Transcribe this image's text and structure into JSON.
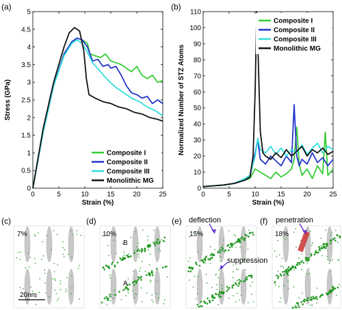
{
  "panels": {
    "a": "(a)",
    "b": "(b)",
    "c": "(c)",
    "d": "(d)",
    "e": "(e)",
    "f": "(f)"
  },
  "chart_data": [
    {
      "id": "a",
      "type": "line",
      "xlabel": "Strain (%)",
      "ylabel": "Stress (GPa)",
      "xlim": [
        0,
        25
      ],
      "ylim": [
        0,
        5
      ],
      "xticks": [
        0,
        5,
        10,
        15,
        20,
        25
      ],
      "yticks": [
        0,
        0.5,
        1,
        1.5,
        2,
        2.5,
        3,
        3.5,
        4,
        4.5,
        5
      ],
      "yticklabels": [
        "0",
        "0.5",
        "1",
        "1.5",
        "2",
        "2.5",
        "3",
        "3.5",
        "4",
        "4.5",
        "5"
      ],
      "grid": false,
      "legend_position": "bottom-right",
      "series": [
        {
          "name": "Composite I",
          "color": "#33cc33",
          "x": [
            0,
            2,
            4,
            6,
            7.5,
            8.5,
            9.5,
            10.5,
            11,
            12,
            13,
            14,
            15,
            16,
            17,
            18,
            19,
            20,
            21,
            22,
            23,
            24,
            25
          ],
          "y": [
            0.0,
            1.6,
            2.9,
            3.8,
            4.15,
            4.25,
            4.2,
            4.1,
            3.8,
            3.75,
            3.7,
            3.8,
            3.6,
            3.55,
            3.5,
            3.4,
            3.3,
            3.45,
            3.2,
            3.1,
            3.2,
            3.0,
            3.05
          ]
        },
        {
          "name": "Composite II",
          "color": "#2233cc",
          "x": [
            0,
            2,
            4,
            6,
            7.5,
            8.5,
            9.5,
            10.5,
            11.5,
            12.5,
            13.5,
            14.5,
            15,
            16,
            17,
            18,
            19,
            20,
            21,
            22,
            23,
            24,
            25
          ],
          "y": [
            0.0,
            1.6,
            2.9,
            3.8,
            4.15,
            4.25,
            4.2,
            4.0,
            3.6,
            3.65,
            3.45,
            3.5,
            3.4,
            3.45,
            3.2,
            2.9,
            2.7,
            2.65,
            2.55,
            2.6,
            2.4,
            2.5,
            2.4
          ]
        },
        {
          "name": "Composite III",
          "color": "#33dddd",
          "x": [
            0,
            2,
            4,
            6,
            7.5,
            8.5,
            9.5,
            10.5,
            11.5,
            13,
            14.5,
            16,
            17.5,
            19,
            20.5,
            22,
            23.5,
            25
          ],
          "y": [
            0.0,
            1.6,
            2.9,
            3.75,
            4.1,
            4.2,
            4.1,
            3.85,
            3.55,
            3.3,
            3.05,
            2.85,
            2.7,
            2.55,
            2.45,
            2.3,
            2.2,
            2.05
          ]
        },
        {
          "name": "Monolithic MG",
          "color": "#111111",
          "x": [
            0,
            2,
            4,
            6,
            7,
            8,
            9,
            9.8,
            10.3,
            10.8,
            12,
            13.5,
            15,
            16.5,
            18,
            19.5,
            21,
            22.5,
            24,
            25
          ],
          "y": [
            0.0,
            1.7,
            3.0,
            4.0,
            4.4,
            4.55,
            4.45,
            3.9,
            3.1,
            2.65,
            2.55,
            2.45,
            2.4,
            2.3,
            2.25,
            2.15,
            2.1,
            2.0,
            1.95,
            1.9
          ]
        }
      ]
    },
    {
      "id": "b",
      "type": "line",
      "xlabel": "Strain (%)",
      "ylabel": "Normalized Number of STZ Atoms",
      "xlim": [
        0,
        25
      ],
      "ylim": [
        0,
        110
      ],
      "xticks": [
        0,
        5,
        10,
        15,
        20,
        25
      ],
      "yticks": [
        0,
        10,
        20,
        30,
        40,
        50,
        60,
        70,
        80,
        90,
        100,
        110
      ],
      "grid": false,
      "legend_position": "top-right",
      "series": [
        {
          "name": "Composite I",
          "color": "#33cc33",
          "x": [
            0,
            2,
            4,
            6,
            8,
            9,
            10,
            11,
            12,
            13,
            14,
            15,
            16,
            17,
            17.5,
            18,
            18.5,
            19,
            20,
            21,
            22,
            23,
            23.5,
            24,
            25
          ],
          "y": [
            1,
            1.5,
            2,
            3,
            5,
            6,
            12,
            10,
            8,
            6,
            10,
            7,
            9,
            12,
            18,
            38,
            15,
            8,
            12,
            6,
            14,
            9,
            35,
            8,
            12
          ]
        },
        {
          "name": "Composite II",
          "color": "#2233cc",
          "x": [
            0,
            2,
            4,
            6,
            8,
            9,
            10,
            10.5,
            11,
            12,
            13,
            14,
            15,
            16,
            17,
            17.5,
            18,
            18.5,
            19,
            20,
            21,
            22,
            23,
            24,
            25
          ],
          "y": [
            1,
            1.5,
            2,
            3,
            5,
            7,
            22,
            30,
            18,
            15,
            20,
            17,
            14,
            20,
            16,
            52,
            20,
            14,
            18,
            15,
            22,
            16,
            19,
            14,
            18
          ]
        },
        {
          "name": "Composite III",
          "color": "#33dddd",
          "x": [
            0,
            2,
            4,
            6,
            8,
            9,
            10,
            10.5,
            11,
            12,
            13,
            14,
            15,
            16,
            17,
            18,
            19,
            20,
            21,
            22,
            23,
            24,
            25
          ],
          "y": [
            1,
            1.5,
            2,
            3,
            6,
            8,
            20,
            31,
            24,
            22,
            26,
            21,
            25,
            20,
            24,
            22,
            27,
            21,
            25,
            28,
            22,
            26,
            24
          ]
        },
        {
          "name": "Monolithic MG",
          "color": "#111111",
          "x": [
            0,
            2,
            4,
            6,
            8,
            9,
            9.6,
            10,
            10.3,
            10.6,
            11,
            11.5,
            12,
            13,
            14,
            15,
            16,
            17,
            18,
            19,
            20,
            21,
            22,
            23,
            24,
            25
          ],
          "y": [
            1,
            1.5,
            2,
            3,
            5,
            7,
            20,
            60,
            110,
            80,
            35,
            22,
            20,
            18,
            22,
            19,
            24,
            20,
            23,
            26,
            20,
            24,
            22,
            25,
            21,
            23
          ]
        }
      ]
    }
  ],
  "snapshots": [
    {
      "id": "c",
      "strain": "7%",
      "scale": "20nm"
    },
    {
      "id": "d",
      "strain": "10%",
      "markB": "B",
      "markA": "A"
    },
    {
      "id": "e",
      "strain": "15%",
      "ann1": "deflection",
      "ann2": "suppression"
    },
    {
      "id": "f",
      "strain": "18%",
      "ann1": "penetration"
    }
  ]
}
